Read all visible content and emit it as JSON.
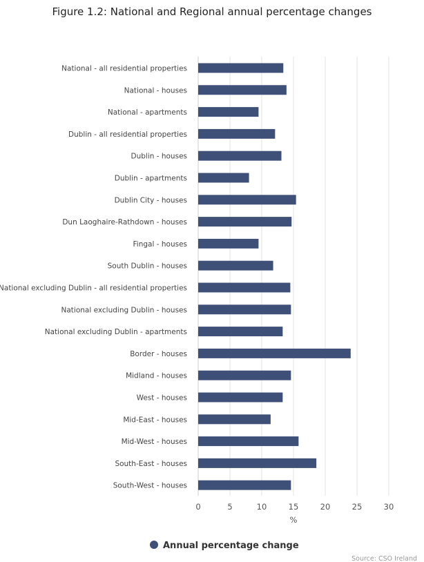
{
  "chart_data": {
    "type": "bar",
    "orientation": "horizontal",
    "title": "Figure 1.2: National and Regional annual percentage changes",
    "xlabel": "%",
    "ylabel": "",
    "xlim": [
      0,
      30
    ],
    "ticks": [
      0,
      5,
      10,
      15,
      20,
      25,
      30
    ],
    "grid": true,
    "legend_position": "bottom",
    "bar_color": "#3f5078",
    "categories": [
      "National - all residential properties",
      "National - houses",
      "National - apartments",
      "Dublin - all residential properties",
      "Dublin - houses",
      "Dublin - apartments",
      "Dublin City - houses",
      "Dun Laoghaire-Rathdown - houses",
      "Fingal - houses",
      "South Dublin - houses",
      "National excluding Dublin - all residential properties",
      "National excluding Dublin - houses",
      "National excluding Dublin - apartments",
      "Border - houses",
      "Midland - houses",
      "West - houses",
      "Mid-East - houses",
      "Mid-West - houses",
      "South-East - houses",
      "South-West - houses"
    ],
    "series": [
      {
        "name": "Annual percentage change",
        "values": [
          13.4,
          13.9,
          9.5,
          12.1,
          13.1,
          8.0,
          15.4,
          14.7,
          9.5,
          11.8,
          14.5,
          14.6,
          13.3,
          24.0,
          14.6,
          13.3,
          11.4,
          15.8,
          18.6,
          14.6
        ]
      }
    ],
    "source": "Source: CSO Ireland"
  }
}
